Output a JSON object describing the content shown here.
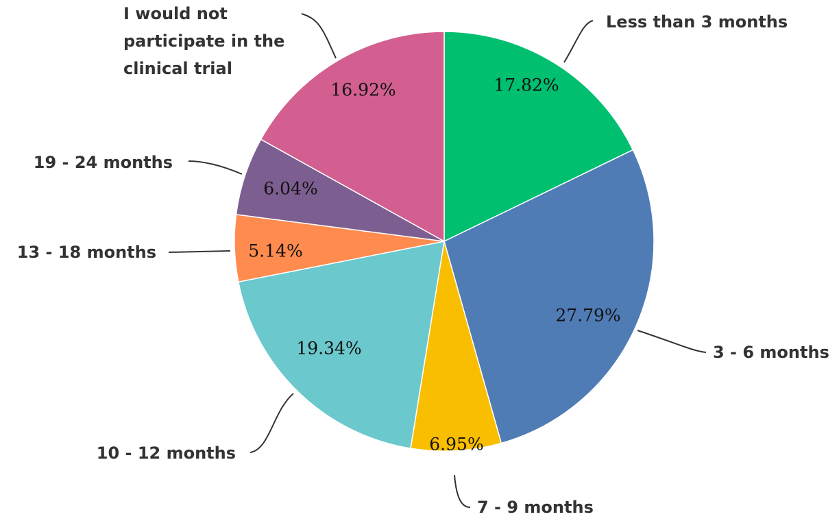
{
  "chart_data": {
    "type": "pie",
    "categories": [
      "Less than 3 months",
      "3 - 6 months",
      "7 - 9 months",
      "10 - 12 months",
      "13 - 18 months",
      "19 - 24 months",
      "I would not participate in the clinical trial"
    ],
    "category_lines": [
      [
        "Less than 3 months"
      ],
      [
        "3 - 6 months"
      ],
      [
        "7 - 9 months"
      ],
      [
        "10 - 12 months"
      ],
      [
        "13 - 18 months"
      ],
      [
        "19 - 24 months"
      ],
      [
        "I would not",
        "participate in the",
        "clinical trial"
      ]
    ],
    "values": [
      17.82,
      27.79,
      6.95,
      19.34,
      5.14,
      6.04,
      16.92
    ],
    "value_labels": [
      "17.82%",
      "27.79%",
      "6.95%",
      "19.34%",
      "5.14%",
      "6.04%",
      "16.92%"
    ],
    "colors": [
      "#00BF6F",
      "#507CB6",
      "#F9BE00",
      "#6BC8CD",
      "#FF8B4F",
      "#7D5E90",
      "#D25F90"
    ],
    "start": "12 o'clock",
    "direction": "clockwise",
    "legend": "none"
  }
}
